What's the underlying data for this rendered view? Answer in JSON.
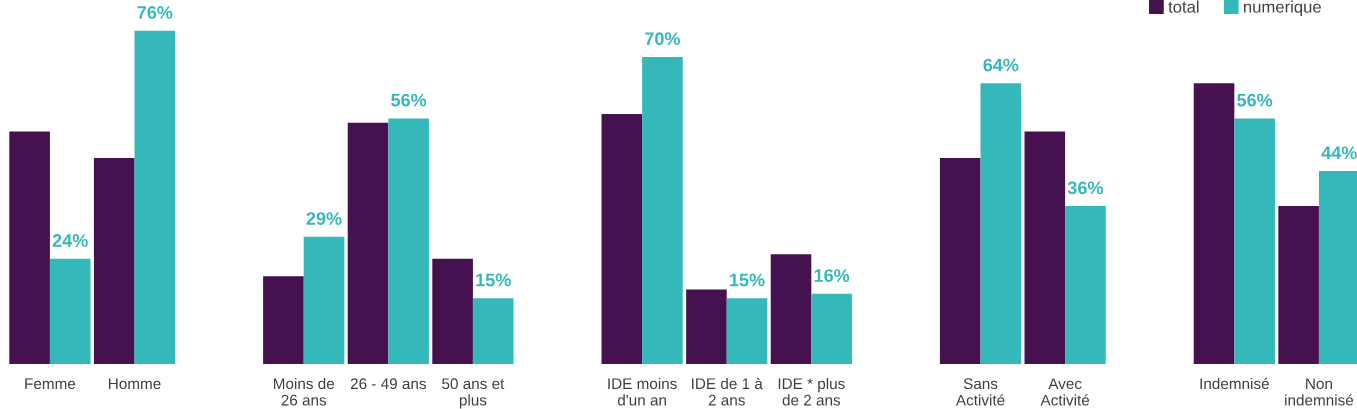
{
  "chart_data": {
    "type": "bar",
    "categories": [
      "Femme",
      "Homme",
      null,
      "Moins de\n26 ans",
      "26 - 49 ans",
      "50 ans et\nplus",
      null,
      "IDE moins\nd'un an",
      "IDE de 1 à\n2 ans",
      "IDE * plus\nde 2 ans",
      null,
      "Sans\nActivité",
      "Avec\nActivité",
      null,
      "Indemnisé",
      "Non\nindemnisé"
    ],
    "series": [
      {
        "name": "total",
        "color": "#45114f",
        "values": [
          53,
          47,
          null,
          20,
          55,
          24,
          null,
          57,
          17,
          25,
          null,
          47,
          53,
          null,
          64,
          36
        ]
      },
      {
        "name": "numerique",
        "color": "#35b8b9",
        "values": [
          24,
          76,
          null,
          29,
          56,
          15,
          null,
          70,
          15,
          16,
          null,
          64,
          36,
          null,
          56,
          44
        ],
        "value_labels": [
          "24%",
          "76%",
          null,
          "29%",
          "56%",
          "15%",
          null,
          "70%",
          "15%",
          "16%",
          null,
          "64%",
          "36%",
          null,
          "56%",
          "44%"
        ]
      }
    ],
    "ylim": [
      0,
      83
    ],
    "tick_labels": "x",
    "grid": false,
    "legend": "top right"
  }
}
